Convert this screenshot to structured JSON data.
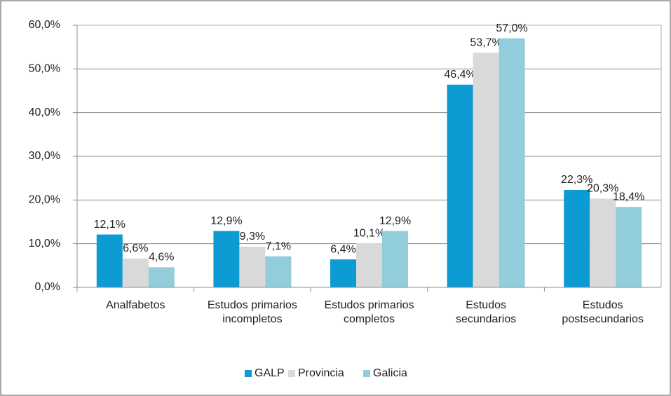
{
  "chart_data": {
    "type": "bar",
    "categories": [
      "Analfabetos",
      "Estudos primarios incompletos",
      "Estudos primarios completos",
      "Estudos secundarios",
      "Estudos postsecundarios"
    ],
    "series": [
      {
        "name": "GALP",
        "color": "#0d9bd4",
        "values": [
          12.1,
          12.9,
          6.4,
          46.4,
          22.3
        ],
        "value_labels": [
          "12,1%",
          "12,9%",
          "6,4%",
          "46,4%",
          "22,3%"
        ]
      },
      {
        "name": "Provincia",
        "color": "#d9d9d9",
        "values": [
          6.6,
          9.3,
          10.1,
          53.7,
          20.3
        ],
        "value_labels": [
          "6,6%",
          "9,3%",
          "10,1%",
          "53,7%",
          "20,3%"
        ]
      },
      {
        "name": "Galicia",
        "color": "#92cddc",
        "values": [
          4.6,
          7.1,
          12.9,
          57.0,
          18.4
        ],
        "value_labels": [
          "4,6%",
          "7,1%",
          "12,9%",
          "57,0%",
          "18,4%"
        ]
      }
    ],
    "ylim": [
      0,
      60
    ],
    "yticks": [
      {
        "value": 0,
        "label": "0,0%"
      },
      {
        "value": 10,
        "label": "10,0%"
      },
      {
        "value": 20,
        "label": "20,0%"
      },
      {
        "value": 30,
        "label": "30,0%"
      },
      {
        "value": 40,
        "label": "40,0%"
      },
      {
        "value": 50,
        "label": "50,0%"
      },
      {
        "value": 60,
        "label": "60,0%"
      }
    ],
    "grid": true,
    "legend": "bottom"
  }
}
